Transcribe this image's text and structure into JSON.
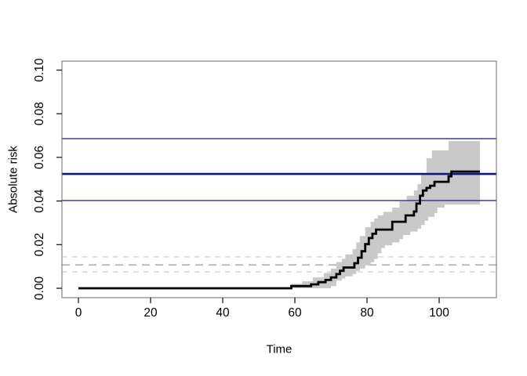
{
  "figure": {
    "background": "#ffffff"
  },
  "chart_data": {
    "type": "line",
    "title": "",
    "xlabel": "Time",
    "ylabel": "Absolute risk",
    "xlim": [
      0,
      111.3
    ],
    "ylim": [
      0,
      0.1
    ],
    "grid": false,
    "legend": "none",
    "x_ticks": [
      0,
      20,
      40,
      60,
      80,
      100
    ],
    "x_tick_labels": [
      "0",
      "20",
      "40",
      "60",
      "80",
      "100"
    ],
    "y_ticks": [
      0.0,
      0.02,
      0.04,
      0.06,
      0.08,
      0.1
    ],
    "y_tick_labels": [
      "0.00",
      "0.02",
      "0.04",
      "0.06",
      "0.08",
      "0.10"
    ],
    "colors": {
      "curve": "#000000",
      "confidence_band": "#c9c9c9",
      "navy_center": "#14147e",
      "navy_outer": "#3b3ba2",
      "gray_dash_center": "#b0b0b0",
      "gray_dash_outer": "#d5d5d5",
      "box": "#6b6b6b",
      "tick": "#1a1a1a"
    },
    "series": [
      {
        "name": "absolute-risk-step-curve",
        "type": "step",
        "color": "#000000",
        "width": 2.8,
        "t_end": 111.3,
        "points": [
          [
            0,
            0
          ],
          [
            59,
            0.001
          ],
          [
            64.5,
            0.0018
          ],
          [
            66.5,
            0.0028
          ],
          [
            68.5,
            0.0038
          ],
          [
            70,
            0.005
          ],
          [
            71.5,
            0.0065
          ],
          [
            72.5,
            0.008
          ],
          [
            73.5,
            0.0095
          ],
          [
            76.5,
            0.0115
          ],
          [
            77.5,
            0.014
          ],
          [
            78.5,
            0.017
          ],
          [
            79.5,
            0.0202
          ],
          [
            80.5,
            0.023
          ],
          [
            81.5,
            0.025
          ],
          [
            82.5,
            0.0269
          ],
          [
            87,
            0.0305
          ],
          [
            90.7,
            0.0334
          ],
          [
            93,
            0.0352
          ],
          [
            93.7,
            0.0388
          ],
          [
            94.7,
            0.0424
          ],
          [
            95.5,
            0.0448
          ],
          [
            96.5,
            0.046
          ],
          [
            97.5,
            0.047
          ],
          [
            98.7,
            0.0488
          ],
          [
            102.6,
            0.0513
          ],
          [
            103.4,
            0.0535
          ]
        ]
      }
    ],
    "band": {
      "name": "confidence-band",
      "color": "#c9c9c9",
      "t_end": 111.3,
      "upper": [
        [
          0,
          0
        ],
        [
          59,
          0.002
        ],
        [
          62,
          0.0032
        ],
        [
          65,
          0.005
        ],
        [
          68,
          0.007
        ],
        [
          70,
          0.009
        ],
        [
          71.5,
          0.012
        ],
        [
          73,
          0.0135
        ],
        [
          74,
          0.0155
        ],
        [
          76,
          0.018
        ],
        [
          77,
          0.021
        ],
        [
          78,
          0.024
        ],
        [
          79.5,
          0.028
        ],
        [
          81,
          0.0305
        ],
        [
          82,
          0.032
        ],
        [
          83,
          0.0334
        ],
        [
          84.5,
          0.035
        ],
        [
          87,
          0.037
        ],
        [
          89,
          0.0399
        ],
        [
          91,
          0.0424
        ],
        [
          93,
          0.0449
        ],
        [
          94,
          0.0478
        ],
        [
          95,
          0.052
        ],
        [
          96.5,
          0.0596
        ],
        [
          98,
          0.0632
        ],
        [
          102.6,
          0.0675
        ]
      ],
      "lower": [
        [
          0,
          0
        ],
        [
          70,
          0.001
        ],
        [
          71.5,
          0.0035
        ],
        [
          73,
          0.0045
        ],
        [
          74,
          0.0055
        ],
        [
          76,
          0.0065
        ],
        [
          77,
          0.008
        ],
        [
          78,
          0.009
        ],
        [
          79.5,
          0.0105
        ],
        [
          81,
          0.012
        ],
        [
          82,
          0.0135
        ],
        [
          83,
          0.016
        ],
        [
          84,
          0.0185
        ],
        [
          85,
          0.0197
        ],
        [
          87,
          0.021
        ],
        [
          89,
          0.0225
        ],
        [
          90,
          0.0244
        ],
        [
          92,
          0.026
        ],
        [
          94,
          0.0273
        ],
        [
          95,
          0.029
        ],
        [
          96,
          0.031
        ],
        [
          97,
          0.0327
        ],
        [
          98.7,
          0.0345
        ],
        [
          99.5,
          0.037
        ],
        [
          101.5,
          0.0384
        ]
      ]
    },
    "hlines": [
      {
        "name": "navy-upper-ci-line",
        "y": 0.0686,
        "color": "#3b3ba2",
        "width": 1.5,
        "dash": ""
      },
      {
        "name": "navy-estimate-line",
        "y": 0.0524,
        "color": "#14147e",
        "width": 2.6,
        "dash": ""
      },
      {
        "name": "navy-lower-ci-line",
        "y": 0.0402,
        "color": "#3b3ba2",
        "width": 1.5,
        "dash": ""
      },
      {
        "name": "gray-upper-ci-line",
        "y": 0.0144,
        "color": "#d5d5d5",
        "width": 1.4,
        "dash": "6.5 6.5"
      },
      {
        "name": "gray-estimate-line",
        "y": 0.0107,
        "color": "#b0b0b0",
        "width": 1.7,
        "dash": "10 7"
      },
      {
        "name": "gray-lower-ci-line",
        "y": 0.0075,
        "color": "#d5d5d5",
        "width": 1.4,
        "dash": "6.5 6.5"
      }
    ]
  }
}
